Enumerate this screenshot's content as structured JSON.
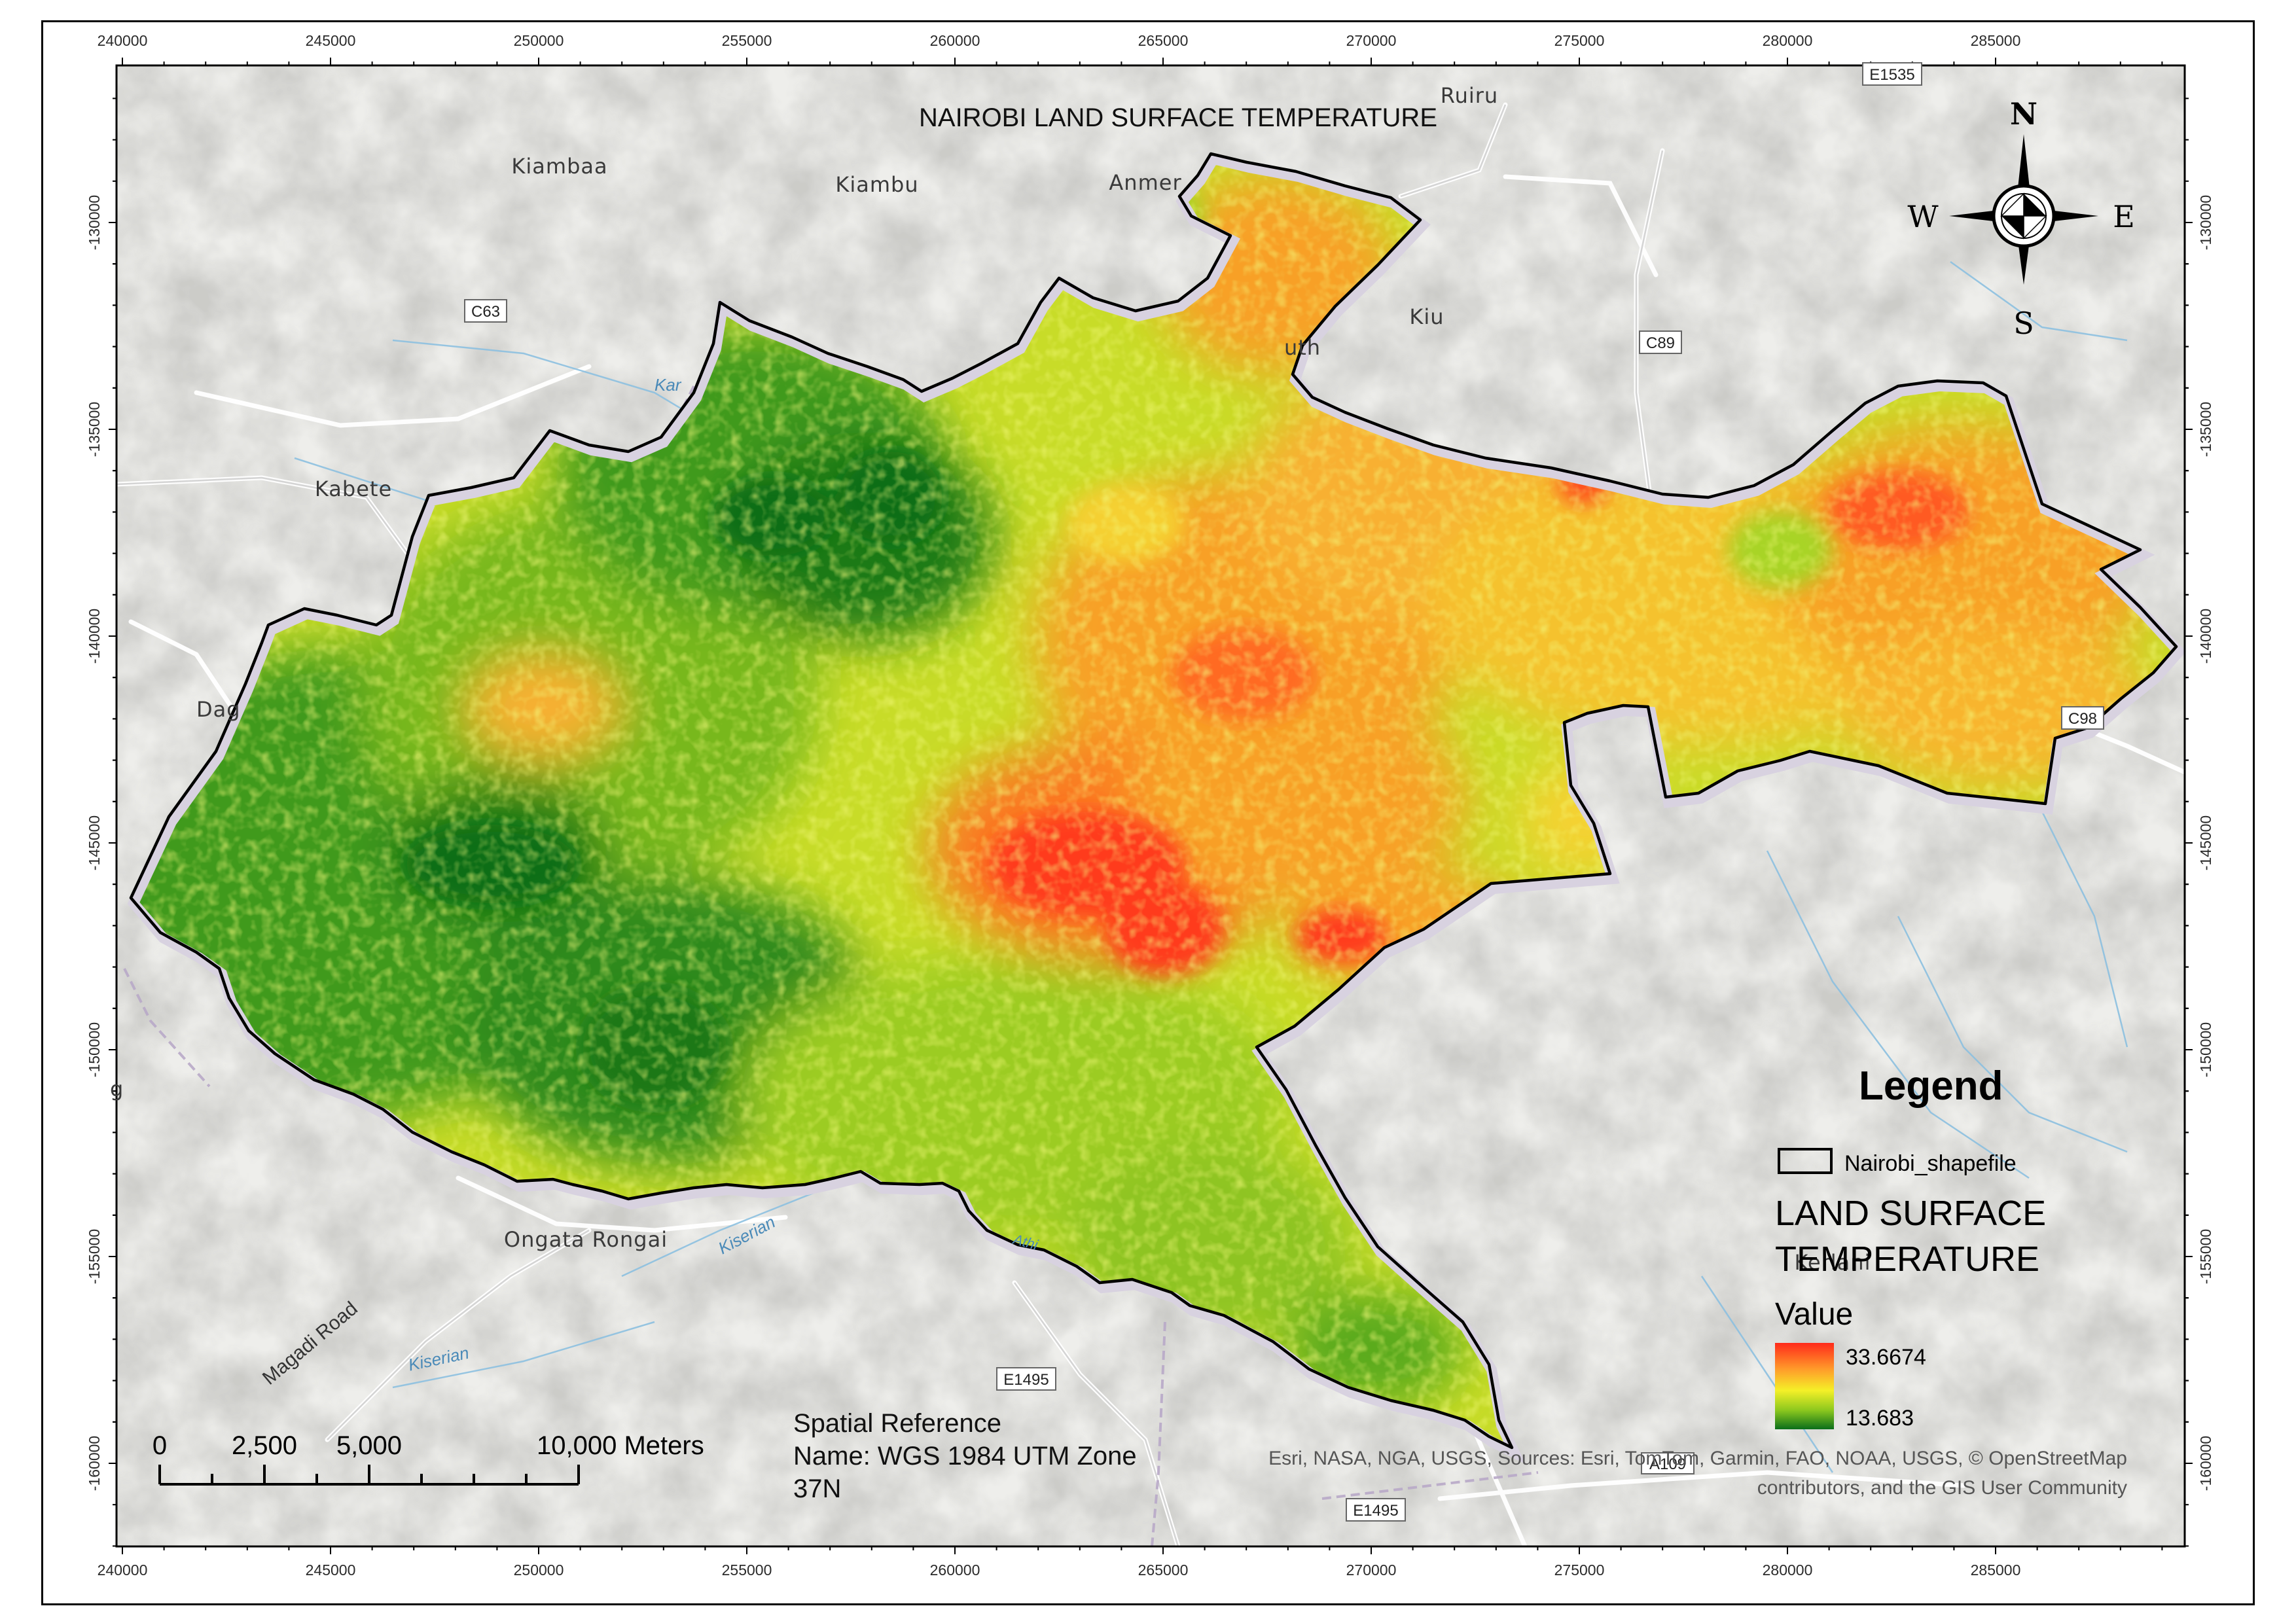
{
  "title": "NAIROBI LAND SURFACE TEMPERATURE",
  "grid": {
    "x_labels": [
      "240000",
      "245000",
      "250000",
      "255000",
      "260000",
      "265000",
      "270000",
      "275000",
      "280000",
      "285000"
    ],
    "y_labels": [
      "-130000",
      "-135000",
      "-140000",
      "-145000",
      "-150000",
      "-155000",
      "-160000"
    ]
  },
  "places": {
    "ruiru": "Ruiru",
    "kiambaa": "Kiambaa",
    "kiambu": "Kiambu",
    "anmer": "Anmer",
    "kiu": "Kiu",
    "uth": "uth",
    "kabete": "Kabete",
    "dag": "Dag",
    "g": "g",
    "ongata_rongai": "Ongata Rongai",
    "kerlani": "Kerlani"
  },
  "roads": {
    "e1535": "E1535",
    "c63": "C63",
    "c89": "C89",
    "c98": "C98",
    "e1495_a": "E1495",
    "e1495_b": "E1495",
    "a109": "A109",
    "magadi_road": "Magadi Road"
  },
  "rivers": {
    "kar": "Kar",
    "kiserian_a": "Kiserian",
    "kiserian_b": "Kiserian",
    "athi": "Athi"
  },
  "north_arrow": {
    "n": "N",
    "s": "S",
    "e": "E",
    "w": "W"
  },
  "legend": {
    "heading": "Legend",
    "layer_label": "Nairobi_shapefile",
    "raster_title_line1": "LAND SURFACE",
    "raster_title_line2": "TEMPERATURE",
    "value_label": "Value",
    "high": "33.6674",
    "low": "13.683"
  },
  "scale_bar": {
    "labels": [
      "0",
      "2,500",
      "5,000",
      "10,000 Meters"
    ],
    "stops_m": [
      0,
      2500,
      5000,
      10000
    ]
  },
  "spatial_reference": {
    "heading": "Spatial Reference",
    "line1": "Name: WGS 1984 UTM Zone",
    "line2": "37N"
  },
  "attribution": {
    "line1": "Esri, NASA, NGA, USGS, Sources: Esri, TomTom, Garmin, FAO, NOAA, USGS, © OpenStreetMap",
    "line2": "contributors, and the GIS User Community"
  },
  "colors": {
    "temp_high": "#ff2a1a",
    "temp_mid_high": "#ff9a2a",
    "temp_mid": "#f5f028",
    "temp_mid_low": "#8cc81e",
    "temp_low": "#0a6e1a",
    "basemap": "#efefec",
    "boundary": "#000000"
  }
}
